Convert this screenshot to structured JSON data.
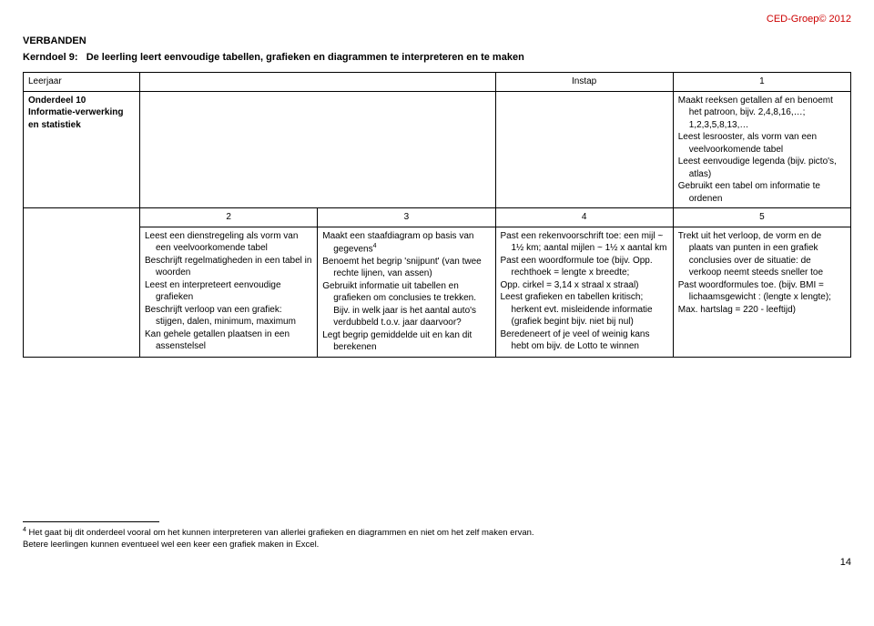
{
  "copyright": "CED-Groep© 2012",
  "sectionTitle": "VERBANDEN",
  "kerndoel": {
    "label": "Kerndoel 9:",
    "text": "De leerling leert eenvoudige tabellen, grafieken en diagrammen te interpreteren en te maken"
  },
  "row1": {
    "leerjaar": "Leerjaar",
    "instap": "Instap",
    "one": "1"
  },
  "row2": {
    "left_b1": "Onderdeel 10",
    "left_b2": "Informatie-verwerking en statistiek",
    "cellInstap": "",
    "cell1": "Maakt reeksen getallen af en benoemt het patroon, bijv. 2,4,8,16,…; 1,2,3,5,8,13,…\nLeest lesrooster, als vorm van een veelvoorkomende tabel\nLeest eenvoudige legenda (bijv. picto's, atlas)\nGebruikt een tabel om informatie te ordenen"
  },
  "row3head": {
    "c2": "2",
    "c3": "3",
    "c4": "4",
    "c5": "5"
  },
  "row4": {
    "c2": "Leest een dienstregeling als vorm van een veelvoorkomende tabel\nBeschrijft regelmatigheden in een tabel in woorden\nLeest en interpreteert eenvoudige grafieken\nBeschrijft verloop van een grafiek: stijgen, dalen, minimum, maximum\nKan gehele getallen plaatsen in een assenstelsel",
    "c3_a": "Maakt een staafdiagram op basis van gegevens",
    "c3_sup": "4",
    "c3_b": "Benoemt het begrip 'snijpunt' (van twee rechte lijnen, van assen)\nGebruikt informatie uit tabellen en grafieken om conclusies te trekken. Bijv. in welk jaar is het aantal auto's verdubbeld t.o.v. jaar daarvoor?\nLegt begrip gemiddelde uit en kan dit berekenen",
    "c4": "Past een rekenvoorschrift toe: een mijl ~ 1½ km; aantal mijlen ~ 1½ x aantal km\nPast een woordformule toe (bijv. Opp. rechthoek = lengte x breedte;\nOpp. cirkel = 3,14 x straal x straal)\nLeest grafieken en tabellen kritisch; herkent evt. misleidende informatie (grafiek begint bijv. niet bij nul)\nBeredeneert of je veel of weinig kans hebt om bijv. de Lotto te winnen",
    "c5": "Trekt uit het verloop, de vorm en de plaats van punten in een grafiek conclusies over de situatie: de verkoop neemt steeds sneller toe\nPast woordformules toe. (bijv. BMI = lichaamsgewicht : (lengte x lengte);\nMax. hartslag = 220 - leeftijd)"
  },
  "footnote": {
    "num": "4",
    "text": "Het gaat bij dit onderdeel vooral om het kunnen interpreteren van allerlei grafieken en diagrammen en niet om het zelf maken ervan.\nBetere leerlingen kunnen eventueel wel een keer een grafiek maken in Excel."
  },
  "pageNumber": "14"
}
